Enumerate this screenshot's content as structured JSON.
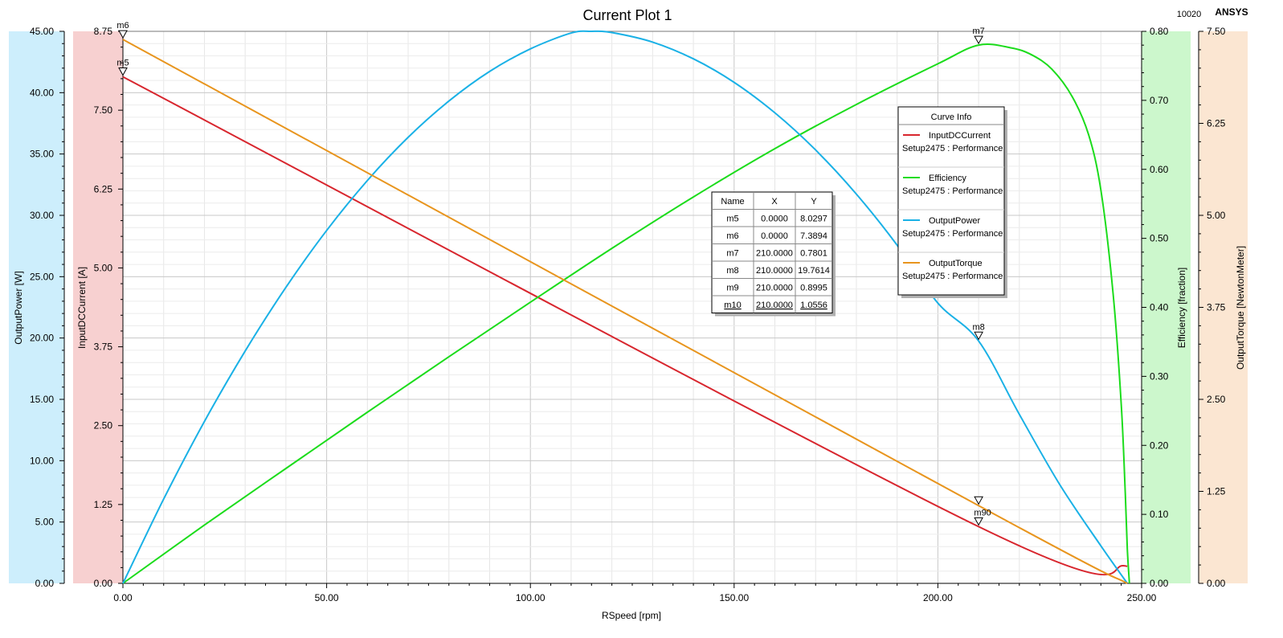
{
  "window": {
    "title": "Current Plot 1",
    "counter": "10020",
    "brand": "ANSYS"
  },
  "colors": {
    "InputDCCurrent": "#d8262e",
    "Efficiency": "#1cdc1c",
    "OutputPower": "#1ab1e6",
    "OutputTorque": "#e8951e",
    "band_power": "#cdeefc",
    "band_current": "#f7d0d0",
    "band_efficiency": "#ccf7cc",
    "band_torque": "#fbe6d2"
  },
  "chart_data": {
    "type": "line",
    "title": "Current Plot 1",
    "xlabel": "RSpeed [rpm]",
    "xlim": [
      0,
      250
    ],
    "x_ticks": [
      "0.00",
      "50.00",
      "100.00",
      "150.00",
      "200.00",
      "250.00"
    ],
    "grid": true,
    "axes": {
      "power": {
        "label": "OutputPower [W]",
        "range": [
          0,
          45
        ],
        "ticks": [
          "0.00",
          "5.00",
          "10.00",
          "15.00",
          "20.00",
          "25.00",
          "30.00",
          "35.00",
          "40.00",
          "45.00"
        ]
      },
      "current": {
        "label": "InputDCCurrent [A]",
        "range": [
          0,
          8.75
        ],
        "ticks": [
          "0.00",
          "1.25",
          "2.50",
          "3.75",
          "5.00",
          "6.25",
          "7.50",
          "8.75"
        ]
      },
      "efficiency": {
        "label": "Efficiency [fraction]",
        "range": [
          0,
          0.8
        ],
        "ticks": [
          "0.00",
          "0.10",
          "0.20",
          "0.30",
          "0.40",
          "0.50",
          "0.60",
          "0.70",
          "0.80"
        ]
      },
      "torque": {
        "label": "OutputTorque [NewtonMeter]",
        "range": [
          0,
          7.5
        ],
        "ticks": [
          "0.00",
          "1.25",
          "2.50",
          "3.75",
          "5.00",
          "6.25",
          "7.50"
        ]
      }
    },
    "series": [
      {
        "name": "InputDCCurrent",
        "source": "Setup2475 : Performance",
        "axis": "current",
        "x": [
          0,
          210,
          246.5
        ],
        "y": [
          8.0297,
          0.8995,
          0.27
        ]
      },
      {
        "name": "Efficiency",
        "source": "Setup2475 : Performance",
        "axis": "efficiency",
        "x": [
          0,
          20,
          40,
          60,
          80,
          100,
          120,
          140,
          160,
          180,
          200,
          210,
          218,
          223,
          228,
          233,
          237,
          240,
          243,
          245,
          246,
          246.5,
          247
        ],
        "y": [
          0,
          0.0845,
          0.1665,
          0.248,
          0.3285,
          0.4075,
          0.4855,
          0.56,
          0.63,
          0.694,
          0.753,
          0.7801,
          0.776,
          0.766,
          0.745,
          0.705,
          0.65,
          0.57,
          0.42,
          0.26,
          0.13,
          0.05,
          0
        ]
      },
      {
        "name": "OutputPower",
        "source": "Setup2475 : Performance",
        "axis": "power",
        "x": [
          0,
          10,
          20,
          30,
          40,
          50,
          60,
          70,
          80,
          90,
          100,
          110,
          115,
          120,
          130,
          140,
          150,
          160,
          170,
          180,
          190,
          200,
          210,
          220,
          230,
          240,
          246.5
        ],
        "y": [
          0,
          6.87,
          13.19,
          18.94,
          24.13,
          28.77,
          32.84,
          36.36,
          39.32,
          41.73,
          43.57,
          44.86,
          45.0,
          44.9,
          44.12,
          42.76,
          40.84,
          38.36,
          35.33,
          31.73,
          27.57,
          22.85,
          19.7614,
          13.78,
          8.0,
          3.06,
          0
        ]
      },
      {
        "name": "OutputTorque",
        "source": "Setup2475 : Performance",
        "axis": "torque",
        "x": [
          0,
          210,
          246.5
        ],
        "y": [
          7.3894,
          1.0556,
          0
        ]
      }
    ],
    "markers": [
      {
        "name": "m5",
        "x": "0.0000",
        "y": "8.0297",
        "xv": 0,
        "yv": 8.0297,
        "axis": "current"
      },
      {
        "name": "m6",
        "x": "0.0000",
        "y": "7.3894",
        "xv": 0,
        "yv": 7.3894,
        "axis": "torque"
      },
      {
        "name": "m7",
        "x": "210.0000",
        "y": "0.7801",
        "xv": 210,
        "yv": 0.7801,
        "axis": "efficiency"
      },
      {
        "name": "m8",
        "x": "210.0000",
        "y": "19.7614",
        "xv": 210,
        "yv": 19.7614,
        "axis": "power"
      },
      {
        "name": "m9",
        "x": "210.0000",
        "y": "0.8995",
        "xv": 210,
        "yv": 0.8995,
        "axis": "current"
      },
      {
        "name": "m10",
        "x": "210.0000",
        "y": "1.0556",
        "xv": 210,
        "yv": 1.0556,
        "axis": "torque"
      }
    ],
    "marker_overlap_label": "m90",
    "marker_table": {
      "headers": [
        "Name",
        "X",
        "Y"
      ]
    },
    "legend": {
      "title": "Curve Info",
      "placement": "upper-right-inner"
    }
  }
}
